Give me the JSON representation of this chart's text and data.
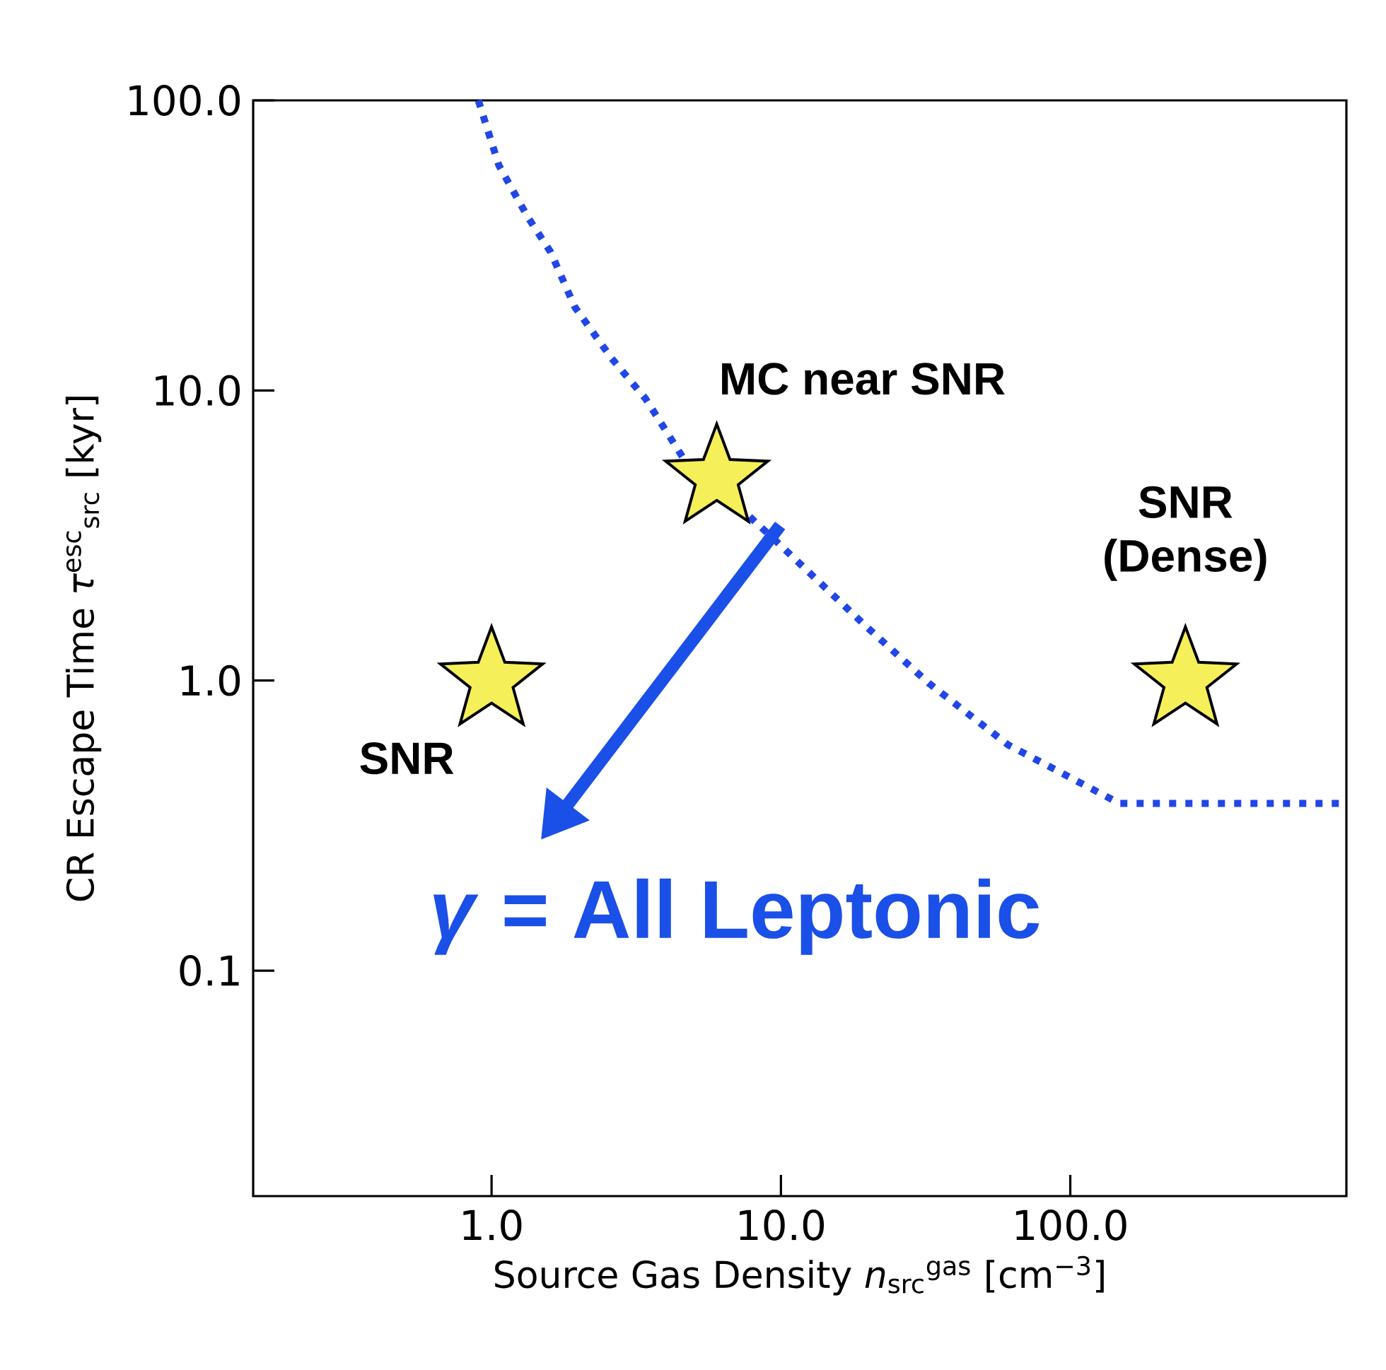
{
  "chart_data": {
    "type": "scatter",
    "xlabel": "Source Gas Density *n*$_{src}$$^{gas}$ [cm$^{−3}$]",
    "ylabel": "CR Escape Time *τ*$^{esc}$$_{src}$ [kyr]",
    "log": "xy",
    "xlim": [
      0.15,
      900
    ],
    "ylim": [
      0.0167,
      100
    ],
    "xticks": [
      {
        "value": 1,
        "label": "1.0"
      },
      {
        "value": 10,
        "label": "10.0"
      },
      {
        "value": 100,
        "label": "100.0"
      }
    ],
    "yticks": [
      0.1,
      {
        "value": 1,
        "label": "1.0"
      },
      {
        "value": 10,
        "label": "10.0"
      },
      {
        "value": 100,
        "label": "100.0"
      }
    ],
    "marker": "star",
    "series": [
      {
        "type": "line",
        "line_style": "dotted",
        "marker": "none",
        "color": "#2046e8",
        "x": [
          0.9,
          1.06,
          1.33,
          1.6,
          1.94,
          2.6,
          3.41,
          4.57,
          7.6,
          9.7,
          19.8,
          32.4,
          61,
          148,
          900
        ],
        "values": [
          100,
          59.7,
          39.8,
          30,
          19.4,
          12.9,
          9.35,
          5.9,
          3.76,
          3.0,
          1.53,
          0.98,
          0.6,
          0.377,
          0.377
        ]
      },
      {
        "color": "#f5f05a",
        "x": [
          1,
          6,
          250
        ],
        "values": [
          1,
          5,
          1
        ]
      }
    ],
    "annotations": [
      {
        "text": "SNR",
        "x": 1,
        "y": 1
      },
      {
        "text": "MC near SNR",
        "x": 6,
        "y": 5
      },
      {
        "text": "SNR (Dense)",
        "x": 250,
        "y": 1
      },
      "*γ* = All Leptonic"
    ]
  }
}
